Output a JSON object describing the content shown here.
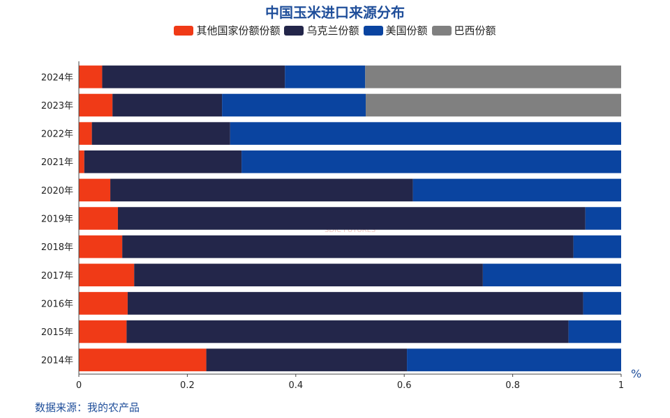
{
  "chart_data": {
    "type": "bar",
    "orientation": "horizontal",
    "stacked": true,
    "title": "中国玉米进口来源分布",
    "categories": [
      "2014年",
      "2015年",
      "2016年",
      "2017年",
      "2018年",
      "2019年",
      "2020年",
      "2021年",
      "2022年",
      "2023年",
      "2024年"
    ],
    "series": [
      {
        "name": "其他国家份额份额",
        "color": "#f03a17",
        "values": [
          0.235,
          0.088,
          0.09,
          0.102,
          0.08,
          0.072,
          0.058,
          0.01,
          0.024,
          0.062,
          0.043
        ]
      },
      {
        "name": "乌克兰份额",
        "color": "#23264a",
        "values": [
          0.37,
          0.815,
          0.84,
          0.643,
          0.832,
          0.862,
          0.558,
          0.29,
          0.255,
          0.202,
          0.337
        ]
      },
      {
        "name": "美国份额",
        "color": "#0a44a0",
        "values": [
          0.395,
          0.097,
          0.07,
          0.255,
          0.088,
          0.066,
          0.384,
          0.7,
          0.721,
          0.265,
          0.148
        ]
      },
      {
        "name": "巴西份额",
        "color": "#808080",
        "values": [
          0,
          0,
          0,
          0,
          0,
          0,
          0,
          0,
          0,
          0.471,
          0.472
        ]
      }
    ],
    "xlim": [
      0,
      1
    ],
    "xticks": [
      "0",
      "0.2",
      "0.4",
      "0.6",
      "0.8",
      "1"
    ],
    "xunit": "%",
    "grid": false,
    "legend_position": "top"
  },
  "source_text": "数据来源：我的农产品",
  "watermark_text": "SDIC FUTURES"
}
